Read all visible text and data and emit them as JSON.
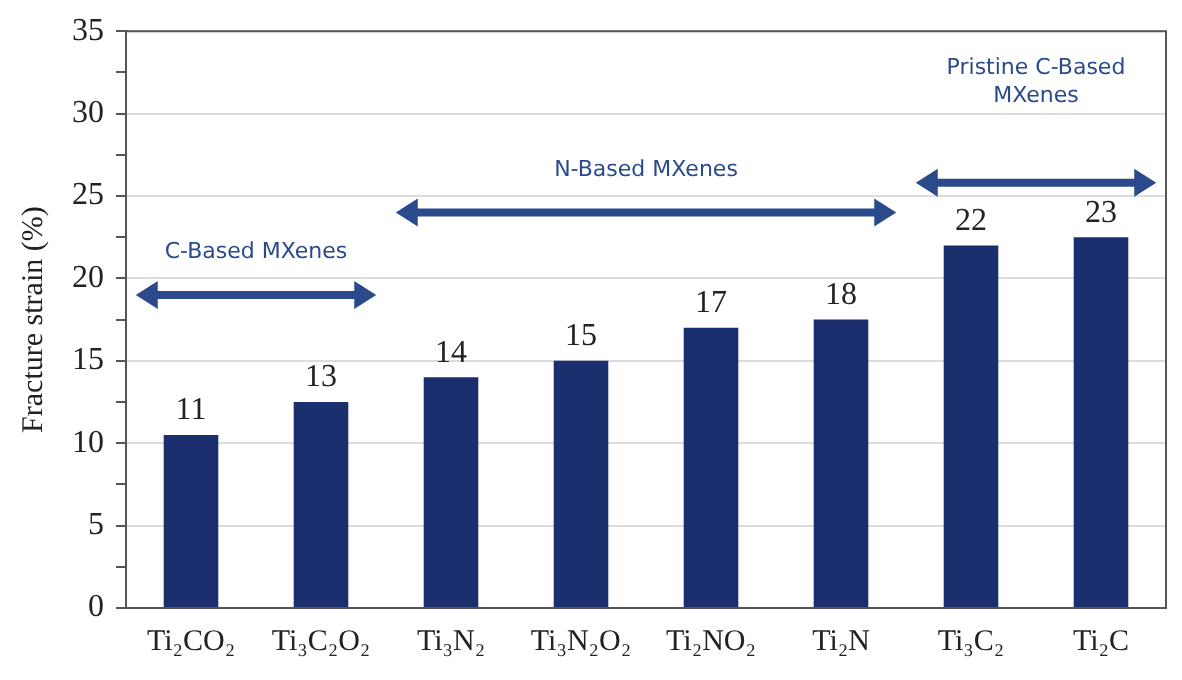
{
  "chart_data": {
    "type": "bar",
    "ylabel": "Fracture strain (%)",
    "categories": [
      "Ti₂CO₂",
      "Ti₃C₂O₂",
      "Ti₃N₂",
      "Ti₃N₂O₂",
      "Ti₂NO₂",
      "Ti₂N",
      "Ti₃C₂",
      "Ti₂C"
    ],
    "values": [
      10.5,
      12.5,
      14,
      15,
      17,
      17.5,
      22,
      22.5
    ],
    "value_labels": [
      "11",
      "13",
      "14",
      "15",
      "17",
      "18",
      "22",
      "23"
    ],
    "color": "#1b2f6e",
    "ylim": [
      0,
      35
    ],
    "yticks": [
      0,
      {
        "value": 2.5,
        "label": null
      },
      5,
      {
        "value": 7.5,
        "label": null
      },
      10,
      {
        "value": 12.5,
        "label": null
      },
      15,
      {
        "value": 17.5,
        "label": null
      },
      20,
      {
        "value": 22.5,
        "label": null
      },
      25,
      {
        "value": 27.5,
        "label": null
      },
      30,
      {
        "value": 32.5,
        "label": null
      },
      35
    ],
    "grid": "y",
    "annotations": [
      "C-Based MXenes",
      "N-Based MXenes",
      "Pristine C-Based MXenes"
    ]
  }
}
